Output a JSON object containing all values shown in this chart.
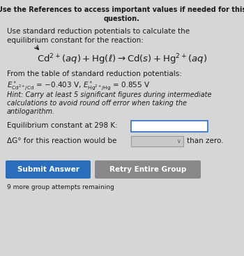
{
  "header_line1": "Use the References to access important values if needed for this",
  "header_line2": "question.",
  "intro_line1": "Use standard reduction potentials to calculate the",
  "intro_line2": "equilibrium constant for the reaction:",
  "from_table": "From the table of standard reduction potentials:",
  "hint_line1": "Hint: Carry at least 5 significant figures during intermediate",
  "hint_line2": "calculations to avoid round off error when taking the",
  "hint_line3": "antilogarithm.",
  "eq_label": "Equilibrium constant at 298 K:",
  "delta_label": "ΔG° for this reaction would be",
  "than_zero": "than zero.",
  "submit_text": "Submit Answer",
  "retry_text": "Retry Entire Group",
  "footer": "9 more group attempts remaining",
  "bg_color": "#d6d6d6",
  "content_bg": "#e0dedd",
  "submit_color": "#2a6ebb",
  "retry_color": "#888888",
  "text_color": "#1a1a1a",
  "header_fontsize": 7.0,
  "body_fontsize": 7.5,
  "reaction_fontsize": 9.5,
  "hint_fontsize": 7.0,
  "button_fontsize": 7.5,
  "box_border_color": "#3a7acc",
  "dropdown_bg": "#c8c8c8"
}
